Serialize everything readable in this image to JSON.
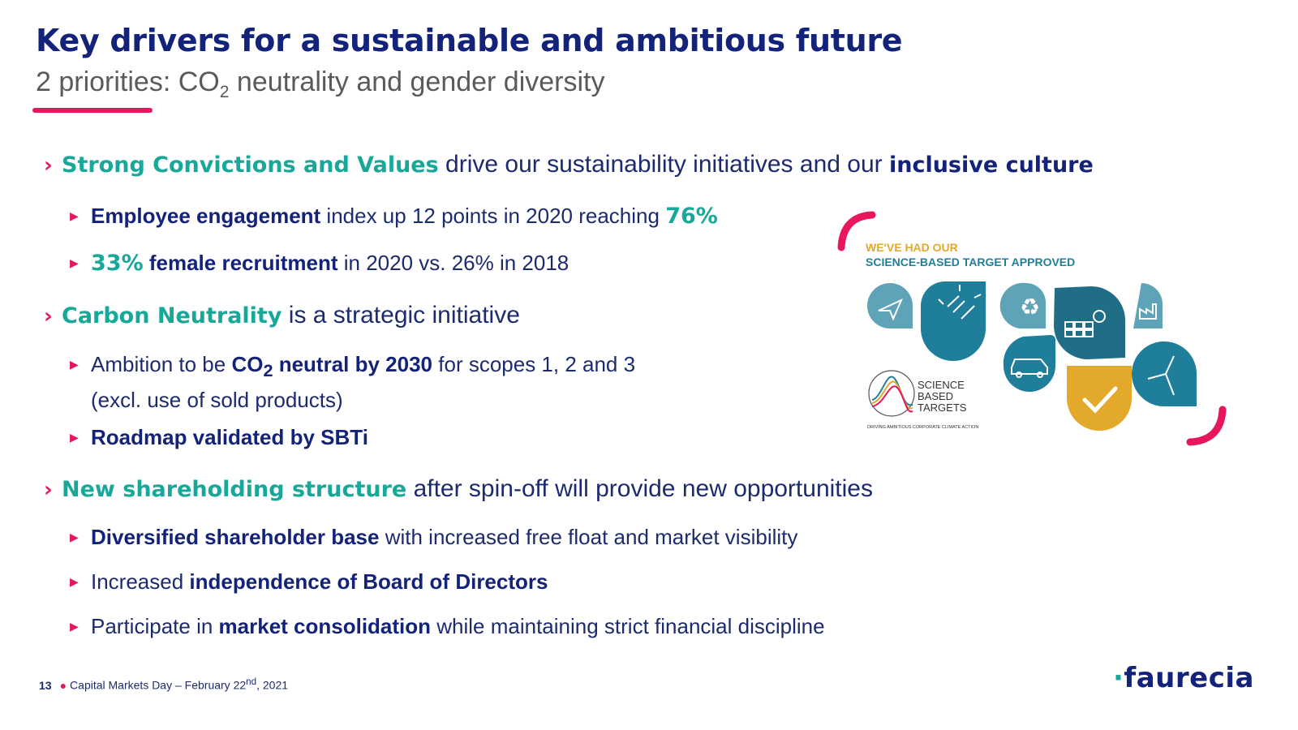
{
  "header": {
    "title": "Key drivers for a sustainable and ambitious future",
    "subtitle_a": "2 priorities: CO",
    "subtitle_sub": "2",
    "subtitle_b": " neutrality and gender diversity"
  },
  "s1": {
    "teal": "Strong Convictions and Values",
    "mid": " drive our sustainability initiatives and our ",
    "bold": "inclusive culture",
    "b1_bold": "Employee engagement",
    "b1_text": " index up 12 points in 2020 reaching ",
    "b1_value": "76%",
    "b2_value": "33%",
    "b2_bold": " female recruitment",
    "b2_text": " in 2020 vs. 26% in 2018"
  },
  "s2": {
    "teal": "Carbon Neutrality",
    "text": " is a strategic initiative",
    "b1_a": "Ambition to be ",
    "b1_bold_a": "CO",
    "b1_sub": "2",
    "b1_bold_b": " neutral by 2030",
    "b1_b": " for scopes 1, 2 and 3",
    "b1_c": "(excl. use of sold products)",
    "b2_bold": "Roadmap validated by SBTi"
  },
  "s3": {
    "teal": "New shareholding structure",
    "text": " after spin-off will provide new opportunities",
    "b1_bold": "Diversified shareholder base",
    "b1_text": " with increased free float and market visibility",
    "b2_text": "Increased ",
    "b2_bold": "independence of Board of Directors",
    "b3_text": "Participate in ",
    "b3_bold": "market consolidation",
    "b3_text2": " while maintaining strict financial discipline"
  },
  "graphic": {
    "line1": "WE'VE HAD OUR",
    "line2": "SCIENCE-BASED TARGET APPROVED",
    "sbt_1": "SCIENCE",
    "sbt_2": "BASED",
    "sbt_3": "TARGETS",
    "sbt_tag": "DRIVING AMBITIOUS CORPORATE CLIMATE ACTION"
  },
  "footer": {
    "page": "13",
    "text": "Capital Markets Day – February 22",
    "sup": "nd",
    "text2": ", 2021",
    "logo": "faurecia"
  },
  "colors": {
    "navy": "#14237a",
    "teal": "#17a89a",
    "pink": "#e8175d",
    "gold": "#e3a92a",
    "blue": "#1f7f9a"
  }
}
